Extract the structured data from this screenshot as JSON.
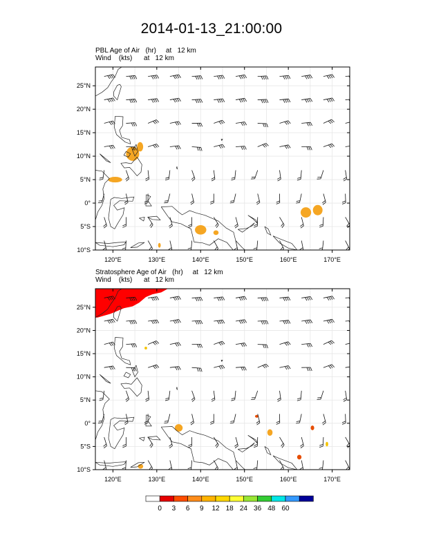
{
  "main_title": "2014-01-13_21:00:00",
  "chart_data": [
    {
      "type": "map",
      "panel": "top",
      "title_line1": "PBL Age of Air   (hr)     at   12 km",
      "title_line2": "Wind    (kts)      at   12 km",
      "xlim": [
        116,
        174
      ],
      "ylim": [
        -10,
        29
      ],
      "xticks": [
        120,
        130,
        140,
        150,
        160,
        170
      ],
      "xtick_labels": [
        "120°E",
        "130°E",
        "140°E",
        "150°E",
        "160°E",
        "170°E"
      ],
      "yticks": [
        25,
        20,
        15,
        10,
        5,
        0,
        -5,
        -10
      ],
      "ytick_labels": [
        "25°N",
        "20°N",
        "15°N",
        "10°N",
        "5°N",
        "0°",
        "5°S",
        "10°S"
      ],
      "shaded_regions": [
        {
          "lon": 124.5,
          "lat": 10.5,
          "rx": 1.5,
          "ry": 1.5,
          "color": "#f5a623"
        },
        {
          "lon": 126.2,
          "lat": 12.0,
          "rx": 0.7,
          "ry": 1.0,
          "color": "#f5a623"
        },
        {
          "lon": 120.5,
          "lat": 5.0,
          "rx": 1.6,
          "ry": 0.6,
          "color": "#f5a623"
        },
        {
          "lon": 140.0,
          "lat": -5.7,
          "rx": 1.3,
          "ry": 1.0,
          "color": "#f5a623"
        },
        {
          "lon": 143.5,
          "lat": -6.3,
          "rx": 0.6,
          "ry": 0.5,
          "color": "#f5a623"
        },
        {
          "lon": 164.0,
          "lat": -2.0,
          "rx": 1.2,
          "ry": 1.1,
          "color": "#f5a623"
        },
        {
          "lon": 166.7,
          "lat": -1.5,
          "rx": 1.1,
          "ry": 1.1,
          "color": "#f5a623"
        },
        {
          "lon": 130.6,
          "lat": -9.0,
          "rx": 0.3,
          "ry": 0.5,
          "color": "#f5a623"
        }
      ]
    },
    {
      "type": "map",
      "panel": "bottom",
      "title_line1": "Stratosphere Age of Air   (hr)     at   12 km",
      "title_line2": "Wind    (kts)      at   12 km",
      "xlim": [
        116,
        174
      ],
      "ylim": [
        -10,
        29
      ],
      "xticks": [
        120,
        130,
        140,
        150,
        160,
        170
      ],
      "xtick_labels": [
        "120°E",
        "130°E",
        "140°E",
        "150°E",
        "160°E",
        "170°E"
      ],
      "yticks": [
        25,
        20,
        15,
        10,
        5,
        0,
        -5,
        -10
      ],
      "ytick_labels": [
        "25°N",
        "20°N",
        "15°N",
        "10°N",
        "5°N",
        "0°",
        "5°S",
        "10°S"
      ],
      "shaded_regions": [
        {
          "lon": 135.0,
          "lat": -1.0,
          "rx": 0.9,
          "ry": 0.8,
          "color": "#f5a623"
        },
        {
          "lon": 155.8,
          "lat": -2.0,
          "rx": 0.6,
          "ry": 0.7,
          "color": "#f5a623"
        },
        {
          "lon": 162.5,
          "lat": -7.3,
          "rx": 0.5,
          "ry": 0.5,
          "color": "#e64d00"
        },
        {
          "lon": 165.5,
          "lat": -1.0,
          "rx": 0.4,
          "ry": 0.5,
          "color": "#e64d00"
        },
        {
          "lon": 152.8,
          "lat": 1.5,
          "rx": 0.4,
          "ry": 0.3,
          "color": "#e64d00"
        },
        {
          "lon": 127.5,
          "lat": 16.2,
          "rx": 0.3,
          "ry": 0.3,
          "color": "#f5c400"
        },
        {
          "lon": 126.3,
          "lat": -9.3,
          "rx": 0.6,
          "ry": 0.5,
          "color": "#f5a623"
        },
        {
          "lon": 168.8,
          "lat": -4.5,
          "rx": 0.3,
          "ry": 0.5,
          "color": "#f5c400"
        }
      ],
      "stratosphere_region": {
        "description": "red shaded area in the north-west corner",
        "color": "#ff0000"
      }
    }
  ],
  "colorbar": {
    "labels": [
      "0",
      "3",
      "6",
      "9",
      "12",
      "18",
      "24",
      "36",
      "48",
      "60"
    ],
    "colors": [
      "#ffffff",
      "#e60000",
      "#ff4d00",
      "#ff8c1a",
      "#ffb300",
      "#ffd700",
      "#ffff33",
      "#99e633",
      "#33cc33",
      "#00e6e6",
      "#3399ff",
      "#000099"
    ]
  }
}
